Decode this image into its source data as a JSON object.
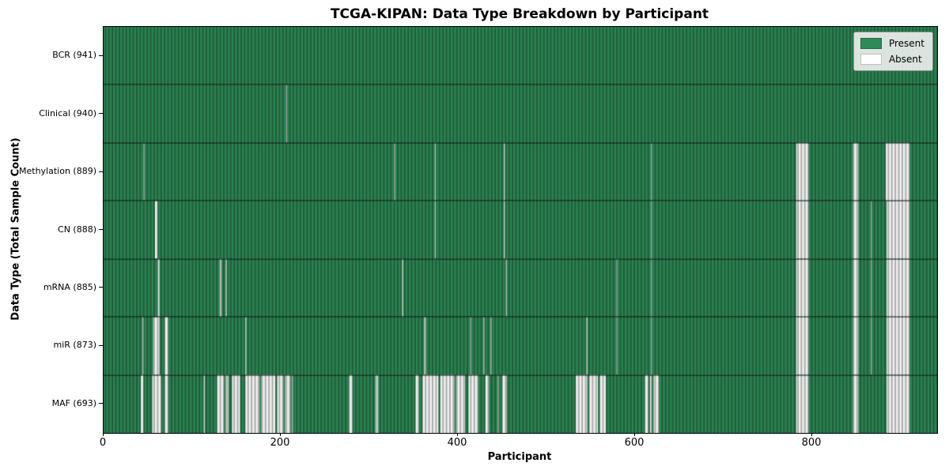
{
  "chart_data": {
    "type": "heatmap",
    "title": "TCGA-KIPAN: Data Type Breakdown by Participant",
    "xlabel": "Participant",
    "ylabel": "Data Type (Total Sample Count)",
    "n_participants": 941,
    "x_ticks": [
      0,
      200,
      400,
      600,
      800
    ],
    "present_color": "#2e8b57",
    "absent_color": "#ffffff",
    "legend_position": "upper right",
    "legend": [
      {
        "label": "Present",
        "color": "#2e8b57"
      },
      {
        "label": "Absent",
        "color": "#ffffff"
      }
    ],
    "rows": [
      {
        "label": "BCR (941)",
        "data_type": "BCR",
        "present_count": 941,
        "absent_ranges": []
      },
      {
        "label": "Clinical (940)",
        "data_type": "Clinical",
        "present_count": 940,
        "absent_ranges": [
          [
            206,
            207
          ]
        ]
      },
      {
        "label": "Methylation (889)",
        "data_type": "Methylation",
        "present_count": 889,
        "absent_ranges": [
          [
            45,
            46
          ],
          [
            328,
            329
          ],
          [
            374,
            375
          ],
          [
            452,
            453
          ],
          [
            618,
            619
          ],
          [
            782,
            796
          ],
          [
            846,
            852
          ],
          [
            883,
            910
          ]
        ]
      },
      {
        "label": "CN (888)",
        "data_type": "CN",
        "present_count": 888,
        "absent_ranges": [
          [
            58,
            61
          ],
          [
            374,
            375
          ],
          [
            452,
            453
          ],
          [
            618,
            619
          ],
          [
            782,
            796
          ],
          [
            846,
            852
          ],
          [
            866,
            867
          ],
          [
            884,
            910
          ]
        ]
      },
      {
        "label": "mRNA (885)",
        "data_type": "mRNA",
        "present_count": 885,
        "absent_ranges": [
          [
            61,
            63
          ],
          [
            131,
            133
          ],
          [
            138,
            139
          ],
          [
            337,
            338
          ],
          [
            454,
            455
          ],
          [
            579,
            580
          ],
          [
            618,
            619
          ],
          [
            782,
            796
          ],
          [
            846,
            852
          ],
          [
            866,
            867
          ],
          [
            884,
            910
          ]
        ]
      },
      {
        "label": "miR (873)",
        "data_type": "miR",
        "present_count": 873,
        "absent_ranges": [
          [
            44,
            45
          ],
          [
            56,
            63
          ],
          [
            69,
            73
          ],
          [
            160,
            161
          ],
          [
            362,
            364
          ],
          [
            414,
            415
          ],
          [
            429,
            430
          ],
          [
            437,
            438
          ],
          [
            545,
            546
          ],
          [
            579,
            580
          ],
          [
            618,
            619
          ],
          [
            782,
            796
          ],
          [
            846,
            852
          ],
          [
            866,
            867
          ],
          [
            884,
            910
          ]
        ]
      },
      {
        "label": "MAF (693)",
        "data_type": "MAF",
        "present_count": 693,
        "absent_ranges": [
          [
            42,
            45
          ],
          [
            55,
            65
          ],
          [
            69,
            73
          ],
          [
            113,
            114
          ],
          [
            128,
            136
          ],
          [
            138,
            141
          ],
          [
            145,
            154
          ],
          [
            160,
            176
          ],
          [
            178,
            194
          ],
          [
            196,
            203
          ],
          [
            205,
            211
          ],
          [
            213,
            214
          ],
          [
            277,
            281
          ],
          [
            307,
            310
          ],
          [
            352,
            356
          ],
          [
            360,
            378
          ],
          [
            380,
            396
          ],
          [
            398,
            408
          ],
          [
            412,
            423
          ],
          [
            431,
            435
          ],
          [
            445,
            446
          ],
          [
            450,
            455
          ],
          [
            533,
            546
          ],
          [
            548,
            558
          ],
          [
            560,
            567
          ],
          [
            611,
            615
          ],
          [
            617,
            619
          ],
          [
            621,
            627
          ],
          [
            782,
            796
          ],
          [
            846,
            852
          ],
          [
            884,
            910
          ]
        ]
      }
    ]
  }
}
